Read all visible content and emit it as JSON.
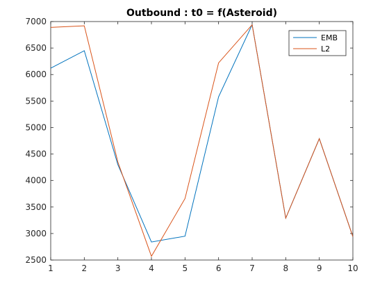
{
  "chart_data": {
    "type": "line",
    "title": "Outbound : t0 = f(Asteroid)",
    "xlabel": "",
    "ylabel": "",
    "xlim": [
      1,
      10
    ],
    "ylim": [
      2500,
      7000
    ],
    "xticks": [
      1,
      2,
      3,
      4,
      5,
      6,
      7,
      8,
      9,
      10
    ],
    "yticks": [
      2500,
      3000,
      3500,
      4000,
      4500,
      5000,
      5500,
      6000,
      6500,
      7000
    ],
    "grid": false,
    "legend_position": "top-right",
    "x": [
      1,
      2,
      3,
      4,
      5,
      6,
      7,
      8,
      9,
      10
    ],
    "series": [
      {
        "name": "EMB",
        "color": "#0072BD",
        "values": [
          6120,
          6450,
          4300,
          2840,
          2950,
          5580,
          6940,
          3290,
          4790,
          2940
        ]
      },
      {
        "name": "L2",
        "color": "#D95319",
        "values": [
          6890,
          6920,
          4350,
          2570,
          3660,
          6220,
          6940,
          3290,
          4790,
          2940
        ]
      }
    ]
  }
}
